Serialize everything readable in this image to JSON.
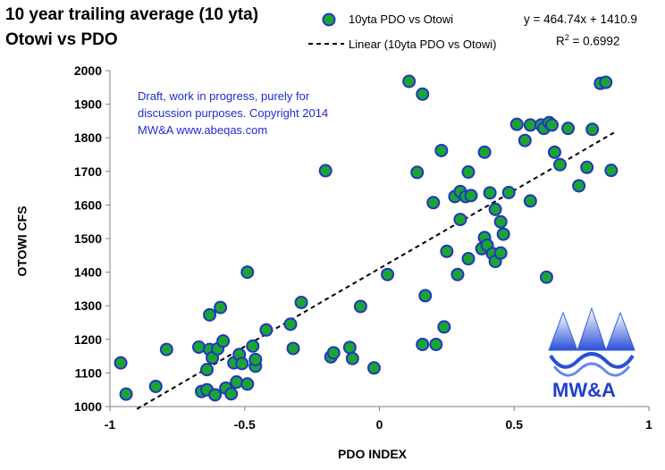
{
  "title_line1": "10 year trailing average (10 yta)",
  "title_line2": "Otowi vs PDO",
  "legend": {
    "points": "10yta PDO vs Otowi",
    "linear": "Linear (10yta PDO vs Otowi)"
  },
  "equation": {
    "fit": "y = 464.74x + 1410.9",
    "r2_prefix": "R",
    "r2_sup": "2",
    "r2_value": " = 0.6992"
  },
  "note": "Draft, work in progress, purely for discussion purposes.   Copyright 2014 MW&A www.abeqas.com",
  "logo_text": "MW&A",
  "colors": {
    "marker_fill": "#1aa531",
    "marker_edge": "#2233c8",
    "trend": "#000000",
    "note_text": "#1f2bd6"
  },
  "chart_data": {
    "type": "scatter",
    "title": "10 year trailing average (10 yta) Otowi vs PDO",
    "xlabel": "PDO INDEX",
    "ylabel": "OTOWI  CFS",
    "xlim": [
      -1,
      1
    ],
    "ylim": [
      1000,
      2000
    ],
    "x_ticks": [
      -1,
      -0.5,
      0,
      0.5,
      1
    ],
    "x_tick_labels": [
      "-1",
      "-0.5",
      "0",
      "0.5",
      "1"
    ],
    "y_ticks": [
      1000,
      1100,
      1200,
      1300,
      1400,
      1500,
      1600,
      1700,
      1800,
      1900,
      2000
    ],
    "y_tick_labels": [
      "1000",
      "1100",
      "1200",
      "1300",
      "1400",
      "1500",
      "1600",
      "1700",
      "1800",
      "1900",
      "2000"
    ],
    "grid": false,
    "legend_position": "top",
    "trendline": {
      "slope": 464.74,
      "intercept": 1410.9,
      "x_range": [
        -0.9,
        0.87
      ]
    },
    "series": [
      {
        "name": "10yta PDO vs Otowi",
        "points": [
          [
            -0.96,
            1130
          ],
          [
            -0.94,
            1037
          ],
          [
            -0.83,
            1060
          ],
          [
            -0.79,
            1170
          ],
          [
            -0.67,
            1177
          ],
          [
            -0.66,
            1045
          ],
          [
            -0.64,
            1110
          ],
          [
            -0.64,
            1050
          ],
          [
            -0.63,
            1170
          ],
          [
            -0.63,
            1273
          ],
          [
            -0.62,
            1145
          ],
          [
            -0.61,
            1035
          ],
          [
            -0.6,
            1172
          ],
          [
            -0.59,
            1295
          ],
          [
            -0.58,
            1195
          ],
          [
            -0.57,
            1055
          ],
          [
            -0.55,
            1038
          ],
          [
            -0.54,
            1130
          ],
          [
            -0.53,
            1073
          ],
          [
            -0.52,
            1155
          ],
          [
            -0.51,
            1128
          ],
          [
            -0.49,
            1400
          ],
          [
            -0.49,
            1067
          ],
          [
            -0.47,
            1180
          ],
          [
            -0.46,
            1120
          ],
          [
            -0.46,
            1140
          ],
          [
            -0.42,
            1228
          ],
          [
            -0.33,
            1245
          ],
          [
            -0.32,
            1173
          ],
          [
            -0.29,
            1310
          ],
          [
            -0.18,
            1148
          ],
          [
            -0.17,
            1160
          ],
          [
            -0.2,
            1702
          ],
          [
            -0.11,
            1176
          ],
          [
            -0.1,
            1143
          ],
          [
            -0.07,
            1298
          ],
          [
            -0.02,
            1115
          ],
          [
            0.03,
            1393
          ],
          [
            0.11,
            1968
          ],
          [
            0.14,
            1697
          ],
          [
            0.16,
            1930
          ],
          [
            0.16,
            1185
          ],
          [
            0.17,
            1330
          ],
          [
            0.2,
            1607
          ],
          [
            0.21,
            1185
          ],
          [
            0.23,
            1762
          ],
          [
            0.24,
            1237
          ],
          [
            0.25,
            1462
          ],
          [
            0.28,
            1625
          ],
          [
            0.29,
            1393
          ],
          [
            0.3,
            1557
          ],
          [
            0.3,
            1640
          ],
          [
            0.32,
            1625
          ],
          [
            0.33,
            1698
          ],
          [
            0.33,
            1440
          ],
          [
            0.34,
            1628
          ],
          [
            0.38,
            1470
          ],
          [
            0.39,
            1757
          ],
          [
            0.39,
            1503
          ],
          [
            0.4,
            1480
          ],
          [
            0.41,
            1636
          ],
          [
            0.42,
            1455
          ],
          [
            0.43,
            1587
          ],
          [
            0.43,
            1432
          ],
          [
            0.45,
            1550
          ],
          [
            0.45,
            1457
          ],
          [
            0.46,
            1513
          ],
          [
            0.48,
            1637
          ],
          [
            0.51,
            1840
          ],
          [
            0.54,
            1792
          ],
          [
            0.56,
            1612
          ],
          [
            0.56,
            1838
          ],
          [
            0.6,
            1838
          ],
          [
            0.61,
            1828
          ],
          [
            0.62,
            1385
          ],
          [
            0.63,
            1845
          ],
          [
            0.64,
            1838
          ],
          [
            0.65,
            1757
          ],
          [
            0.67,
            1720
          ],
          [
            0.7,
            1828
          ],
          [
            0.74,
            1657
          ],
          [
            0.77,
            1712
          ],
          [
            0.79,
            1825
          ],
          [
            0.82,
            1962
          ],
          [
            0.84,
            1965
          ],
          [
            0.86,
            1703
          ]
        ]
      }
    ]
  }
}
